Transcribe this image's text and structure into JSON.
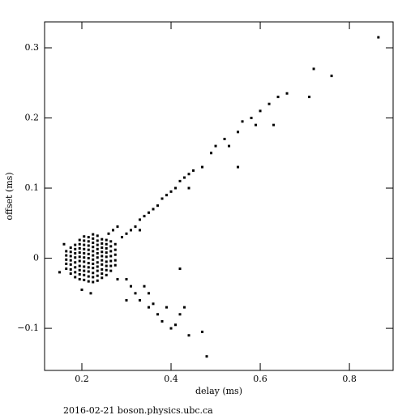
{
  "chart_data": {
    "type": "scatter",
    "xlabel": "delay (ms)",
    "ylabel": "offset (ms)",
    "footer": "2016-02-21 boson.physics.ubc.ca",
    "color": "#000000",
    "xlim": [
      0.1164,
      0.898
    ],
    "ylim": [
      -0.16,
      0.337
    ],
    "xticks": [
      0.2,
      0.4,
      0.6,
      0.8
    ],
    "yticks": [
      {
        "value": -0.1,
        "label": "−0.1"
      },
      0,
      0.1,
      0.2,
      0.3
    ],
    "x": [
      0.165,
      0.165,
      0.165,
      0.165,
      0.165,
      0.175,
      0.175,
      0.175,
      0.175,
      0.175,
      0.175,
      0.175,
      0.185,
      0.185,
      0.185,
      0.185,
      0.185,
      0.185,
      0.185,
      0.185,
      0.195,
      0.195,
      0.195,
      0.195,
      0.195,
      0.195,
      0.195,
      0.195,
      0.195,
      0.195,
      0.205,
      0.205,
      0.205,
      0.205,
      0.205,
      0.205,
      0.205,
      0.205,
      0.205,
      0.205,
      0.205,
      0.215,
      0.215,
      0.215,
      0.215,
      0.215,
      0.215,
      0.215,
      0.215,
      0.215,
      0.215,
      0.215,
      0.225,
      0.225,
      0.225,
      0.225,
      0.225,
      0.225,
      0.225,
      0.225,
      0.225,
      0.225,
      0.225,
      0.225,
      0.235,
      0.235,
      0.235,
      0.235,
      0.235,
      0.235,
      0.235,
      0.235,
      0.235,
      0.235,
      0.235,
      0.245,
      0.245,
      0.245,
      0.245,
      0.245,
      0.245,
      0.245,
      0.245,
      0.245,
      0.245,
      0.255,
      0.255,
      0.255,
      0.255,
      0.255,
      0.255,
      0.255,
      0.255,
      0.255,
      0.265,
      0.265,
      0.265,
      0.265,
      0.265,
      0.265,
      0.265,
      0.275,
      0.275,
      0.275,
      0.275,
      0.275,
      0.29,
      0.3,
      0.31,
      0.32,
      0.33,
      0.34,
      0.35,
      0.36,
      0.37,
      0.38,
      0.39,
      0.4,
      0.41,
      0.42,
      0.43,
      0.44,
      0.45,
      0.47,
      0.49,
      0.5,
      0.52,
      0.53,
      0.55,
      0.56,
      0.58,
      0.59,
      0.6,
      0.62,
      0.63,
      0.64,
      0.66,
      0.71,
      0.72,
      0.76,
      0.865,
      0.55,
      0.44,
      0.33,
      0.28,
      0.27,
      0.3,
      0.31,
      0.32,
      0.33,
      0.34,
      0.35,
      0.36,
      0.37,
      0.38,
      0.39,
      0.4,
      0.41,
      0.42,
      0.43,
      0.44,
      0.47,
      0.48,
      0.3,
      0.35,
      0.42,
      0.15,
      0.16,
      0.2,
      0.22,
      0.26,
      0.28
    ],
    "values": [
      -0.015,
      -0.008,
      -0.002,
      0.004,
      0.01,
      -0.022,
      -0.016,
      -0.009,
      -0.003,
      0.003,
      0.009,
      0.015,
      -0.027,
      -0.02,
      -0.013,
      -0.006,
      0.001,
      0.007,
      0.013,
      0.019,
      -0.03,
      -0.023,
      -0.017,
      -0.011,
      -0.004,
      0.002,
      0.008,
      0.014,
      0.02,
      0.026,
      -0.031,
      -0.024,
      -0.018,
      -0.012,
      -0.005,
      0.001,
      0.007,
      0.013,
      0.019,
      0.025,
      0.031,
      -0.033,
      -0.026,
      -0.019,
      -0.013,
      -0.007,
      0,
      0.006,
      0.012,
      0.018,
      0.024,
      0.03,
      -0.034,
      -0.027,
      -0.021,
      -0.014,
      -0.008,
      -0.002,
      0.004,
      0.01,
      0.016,
      0.022,
      0.028,
      0.034,
      -0.032,
      -0.025,
      -0.018,
      -0.012,
      -0.006,
      0.001,
      0.007,
      0.013,
      0.019,
      0.025,
      0.032,
      -0.028,
      -0.022,
      -0.016,
      -0.009,
      -0.003,
      0.003,
      0.009,
      0.015,
      0.021,
      0.027,
      -0.024,
      -0.017,
      -0.011,
      -0.005,
      0.002,
      0.008,
      0.014,
      0.02,
      0.026,
      -0.018,
      -0.011,
      -0.004,
      0.003,
      0.01,
      0.017,
      0.024,
      -0.01,
      -0.003,
      0.005,
      0.012,
      0.02,
      0.03,
      0.035,
      0.04,
      0.045,
      0.055,
      0.06,
      0.065,
      0.07,
      0.075,
      0.085,
      0.09,
      0.095,
      0.1,
      0.11,
      0.115,
      0.12,
      0.125,
      0.13,
      0.15,
      0.16,
      0.17,
      0.16,
      0.18,
      0.195,
      0.2,
      0.19,
      0.21,
      0.22,
      0.19,
      0.23,
      0.235,
      0.23,
      0.27,
      0.26,
      0.315,
      0.13,
      0.1,
      0.04,
      0.045,
      0.04,
      -0.03,
      -0.04,
      -0.05,
      -0.06,
      -0.04,
      -0.07,
      -0.065,
      -0.08,
      -0.09,
      -0.07,
      -0.1,
      -0.095,
      -0.08,
      -0.07,
      -0.11,
      -0.105,
      -0.14,
      -0.06,
      -0.05,
      -0.015,
      -0.02,
      0.02,
      -0.045,
      -0.05,
      0.035,
      -0.03
    ]
  }
}
